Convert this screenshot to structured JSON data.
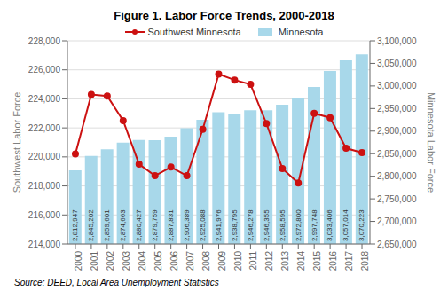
{
  "chart_data": {
    "type": "combo",
    "title": "Figure 1. Labor Force Trends, 2000-2018",
    "annotations": [
      "Source: DEED, Local Area Unemployment Statistics"
    ],
    "ylabel": "Southwest Labor Force",
    "y2label": "Minnesota Labor Force",
    "categories": [
      "2000",
      "2001",
      "2002",
      "2003",
      "2004",
      "2005",
      "2006",
      "2007",
      "2008",
      "2009",
      "2010",
      "2011",
      "2012",
      "2013",
      "2014",
      "2015",
      "2016",
      "2017",
      "2018"
    ],
    "series": [
      {
        "name": "Southwest Minnesota",
        "type": "line",
        "color": "#cc1111",
        "marker": "circle",
        "values": [
          220200,
          224300,
          224200,
          222500,
          219500,
          218700,
          219300,
          218700,
          221900,
          225700,
          225300,
          225000,
          222300,
          219200,
          218200,
          223000,
          222700,
          220600,
          220300
        ]
      },
      {
        "name": "Minnesota",
        "type": "bar",
        "axis": "y2",
        "color": "#a8d8ea",
        "data_labels": true,
        "values": [
          2812947,
          2845202,
          2859601,
          2874663,
          2880427,
          2879759,
          2887831,
          2906389,
          2925088,
          2941976,
          2938795,
          2946278,
          2946355,
          2958595,
          2972800,
          2997748,
          3033406,
          3057014,
          3070223
        ],
        "value_labels": [
          "2,812,947",
          "2,845,202",
          "2,859,601",
          "2,874,663",
          "2,880,427",
          "2,879,759",
          "2,887,831",
          "2,906,389",
          "2,925,088",
          "2,941,976",
          "2,938,795",
          "2,946,278",
          "2,946,355",
          "2,958,595",
          "2,972,800",
          "2,997,748",
          "3,033,406",
          "3,057,014",
          "3,070,223"
        ]
      }
    ],
    "ylim": [
      214000,
      228000
    ],
    "yticks": [
      {
        "value": 214000,
        "label": "214,000"
      },
      {
        "value": 216000,
        "label": "216,000"
      },
      {
        "value": 218000,
        "label": "218,000"
      },
      {
        "value": 220000,
        "label": "220,000"
      },
      {
        "value": 222000,
        "label": "222,000"
      },
      {
        "value": 224000,
        "label": "224,000"
      },
      {
        "value": 226000,
        "label": "226,000"
      },
      {
        "value": 228000,
        "label": "228,000"
      }
    ],
    "y2lim": [
      2650000,
      3100000
    ],
    "y2ticks": [
      {
        "value": 2650000,
        "label": "2,650,000"
      },
      {
        "value": 2700000,
        "label": "2,700,000"
      },
      {
        "value": 2750000,
        "label": "2,750,000"
      },
      {
        "value": 2800000,
        "label": "2,800,000"
      },
      {
        "value": 2850000,
        "label": "2,850,000"
      },
      {
        "value": 2900000,
        "label": "2,900,000"
      },
      {
        "value": 2950000,
        "label": "2,950,000"
      },
      {
        "value": 3000000,
        "label": "3,000,000"
      },
      {
        "value": 3050000,
        "label": "3,050,000"
      },
      {
        "value": 3100000,
        "label": "3,100,000"
      }
    ],
    "grid": true,
    "legend": "top"
  }
}
